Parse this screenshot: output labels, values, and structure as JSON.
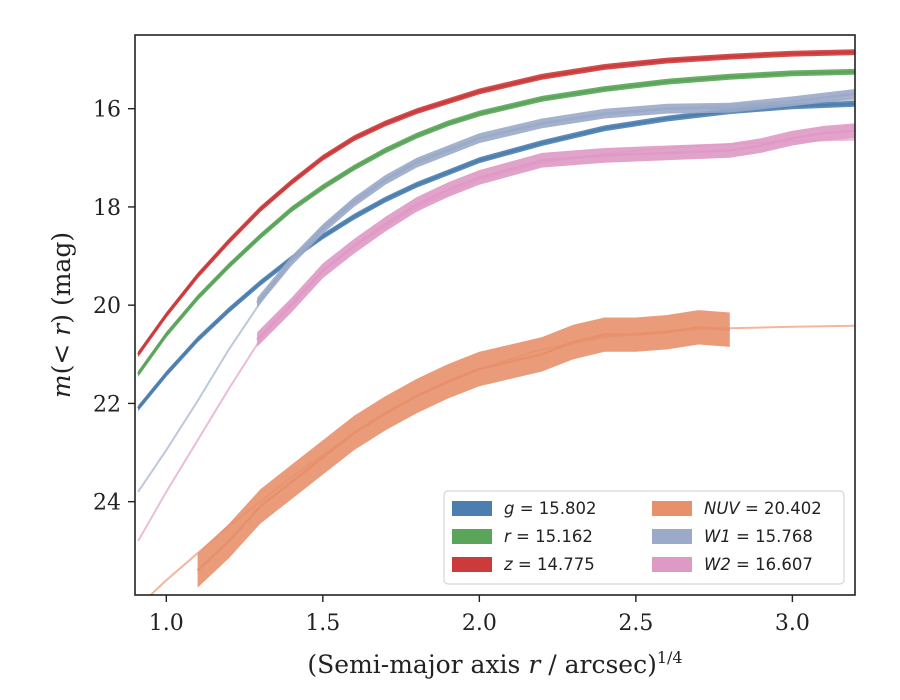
{
  "chart_data": {
    "type": "line",
    "title": "",
    "xlabel_main": "(Semi-major axis ",
    "xlabel_var": "r",
    "xlabel_unit": " / arcsec)",
    "xlabel_exp": "1/4",
    "ylabel_pre": "m",
    "ylabel_paren_open": "(",
    "ylabel_lt": "< ",
    "ylabel_var": "r",
    "ylabel_paren_close": ")",
    "ylabel_unit": " (mag)",
    "xlim": [
      0.9,
      3.2
    ],
    "ylim": [
      25.9,
      14.5
    ],
    "y_inverted": true,
    "xticks": [
      1.0,
      1.5,
      2.0,
      2.5,
      3.0
    ],
    "xtick_labels": [
      "1.0",
      "1.5",
      "2.0",
      "2.5",
      "3.0"
    ],
    "yticks": [
      16,
      18,
      20,
      22,
      24
    ],
    "ytick_labels": [
      "16",
      "18",
      "20",
      "22",
      "24"
    ],
    "grid": false,
    "legend_position": "lower-right",
    "series": [
      {
        "name": "g = 15.802",
        "legend_var": "g",
        "legend_value": "15.802",
        "color": "#4c7faf",
        "data_x": [
          0.91,
          1.0,
          1.1,
          1.2,
          1.3,
          1.4,
          1.5,
          1.6,
          1.7,
          1.8,
          1.9,
          2.0,
          2.2,
          2.4,
          2.6,
          2.8,
          3.0,
          3.2
        ],
        "data_y": [
          22.1,
          21.4,
          20.7,
          20.1,
          19.55,
          19.05,
          18.6,
          18.2,
          17.85,
          17.55,
          17.3,
          17.05,
          16.7,
          16.4,
          16.2,
          16.05,
          15.95,
          15.9
        ],
        "band": 0.06,
        "model_x": [],
        "model_y": []
      },
      {
        "name": "r = 15.162",
        "legend_var": "r",
        "legend_value": "15.162",
        "color": "#5aa55a",
        "data_x": [
          0.91,
          1.0,
          1.1,
          1.2,
          1.3,
          1.4,
          1.5,
          1.6,
          1.7,
          1.8,
          1.9,
          2.0,
          2.2,
          2.4,
          2.6,
          2.8,
          3.0,
          3.2
        ],
        "data_y": [
          21.4,
          20.6,
          19.85,
          19.2,
          18.6,
          18.05,
          17.6,
          17.2,
          16.85,
          16.55,
          16.3,
          16.1,
          15.8,
          15.6,
          15.45,
          15.35,
          15.28,
          15.25
        ],
        "band": 0.06,
        "model_x": [],
        "model_y": []
      },
      {
        "name": "z = 14.775",
        "legend_var": "z",
        "legend_value": "14.775",
        "color": "#cc3b3b",
        "data_x": [
          0.91,
          1.0,
          1.1,
          1.2,
          1.3,
          1.4,
          1.5,
          1.6,
          1.7,
          1.8,
          1.9,
          2.0,
          2.2,
          2.4,
          2.6,
          2.8,
          3.0,
          3.2
        ],
        "data_y": [
          21.0,
          20.2,
          19.4,
          18.7,
          18.05,
          17.5,
          17.0,
          16.6,
          16.3,
          16.05,
          15.85,
          15.65,
          15.35,
          15.15,
          15.02,
          14.94,
          14.88,
          14.85
        ],
        "band": 0.06,
        "model_x": [],
        "model_y": []
      },
      {
        "name": "NUV = 20.402",
        "legend_var": "NUV",
        "legend_value": "20.402",
        "color": "#e8906c",
        "data_x": [
          1.1,
          1.2,
          1.3,
          1.4,
          1.5,
          1.6,
          1.7,
          1.8,
          1.9,
          2.0,
          2.1,
          2.2,
          2.3,
          2.4,
          2.5,
          2.6,
          2.7,
          2.8
        ],
        "data_y": [
          25.4,
          24.8,
          24.1,
          23.6,
          23.1,
          22.6,
          22.2,
          21.85,
          21.55,
          21.3,
          21.15,
          21.0,
          20.75,
          20.6,
          20.6,
          20.55,
          20.45,
          20.5
        ],
        "band": 0.35,
        "model_x": [
          0.9,
          1.0,
          1.2,
          1.4,
          1.6,
          1.8,
          2.0,
          2.2,
          2.4,
          2.6,
          2.8,
          3.0,
          3.2
        ],
        "model_y": [
          26.2,
          25.6,
          24.5,
          23.5,
          22.6,
          21.85,
          21.3,
          20.9,
          20.65,
          20.52,
          20.47,
          20.44,
          20.42
        ]
      },
      {
        "name": "W1 = 15.768",
        "legend_var": "W1",
        "legend_value": "15.768",
        "color": "#9aaac8",
        "data_x": [
          1.29,
          1.4,
          1.5,
          1.6,
          1.7,
          1.8,
          1.9,
          2.0,
          2.2,
          2.4,
          2.6,
          2.8,
          3.0,
          3.2
        ],
        "data_y": [
          19.95,
          19.1,
          18.45,
          17.9,
          17.45,
          17.1,
          16.85,
          16.6,
          16.3,
          16.1,
          16.0,
          15.98,
          15.85,
          15.7
        ],
        "band": 0.1,
        "model_x": [
          0.91,
          1.0,
          1.1,
          1.2,
          1.3,
          1.4,
          1.5,
          1.6,
          1.8,
          2.0,
          2.2,
          2.4,
          2.6,
          2.8,
          3.0,
          3.2
        ],
        "model_y": [
          23.8,
          22.95,
          21.95,
          20.9,
          19.95,
          19.1,
          18.4,
          17.85,
          17.05,
          16.6,
          16.3,
          16.12,
          16.0,
          15.92,
          15.86,
          15.82
        ]
      },
      {
        "name": "W2 = 16.607",
        "legend_var": "W2",
        "legend_value": "16.607",
        "color": "#df99c5",
        "data_x": [
          1.29,
          1.4,
          1.5,
          1.6,
          1.7,
          1.8,
          1.9,
          2.0,
          2.2,
          2.4,
          2.6,
          2.8,
          2.9,
          3.0,
          3.1,
          3.2
        ],
        "data_y": [
          20.7,
          20.0,
          19.3,
          18.8,
          18.35,
          17.95,
          17.65,
          17.4,
          17.05,
          16.95,
          16.9,
          16.85,
          16.75,
          16.6,
          16.5,
          16.45
        ],
        "band": 0.15,
        "model_x": [
          0.91,
          1.0,
          1.1,
          1.2,
          1.3,
          1.4,
          1.5,
          1.6,
          1.8,
          2.0,
          2.2,
          2.4,
          2.6,
          2.8,
          3.0,
          3.2
        ],
        "model_y": [
          24.8,
          23.8,
          22.75,
          21.7,
          20.7,
          19.95,
          19.3,
          18.8,
          18.0,
          17.45,
          17.1,
          16.92,
          16.8,
          16.72,
          16.66,
          16.63
        ]
      }
    ]
  }
}
